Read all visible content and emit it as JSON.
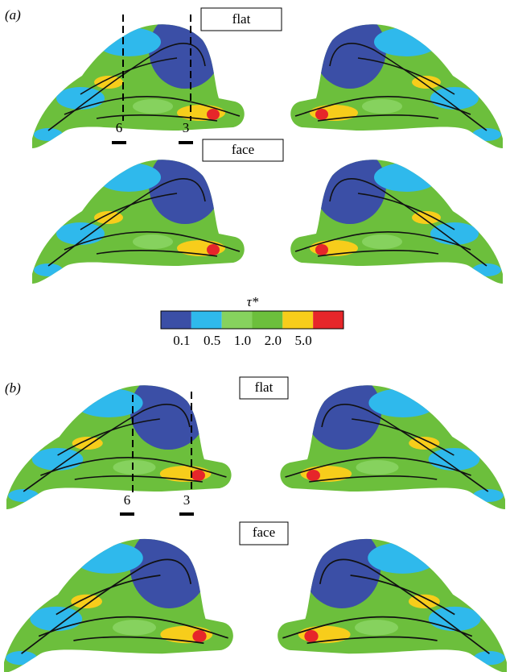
{
  "panel_a": {
    "label": "(a)",
    "top_caption": "flat",
    "bottom_caption": "face",
    "markers": [
      "6",
      "3"
    ]
  },
  "colorbar": {
    "title": "τ*",
    "tick_labels": [
      "0.1",
      "0.5",
      "1.0",
      "2.0",
      "5.0"
    ],
    "colors": [
      "#3b4fa6",
      "#2fb9ec",
      "#86d25e",
      "#6cbf3c",
      "#f7cd1b",
      "#e6262a"
    ]
  },
  "panel_b": {
    "label": "(b)",
    "top_caption": "flat",
    "bottom_caption": "face",
    "markers": [
      "6",
      "3"
    ]
  }
}
